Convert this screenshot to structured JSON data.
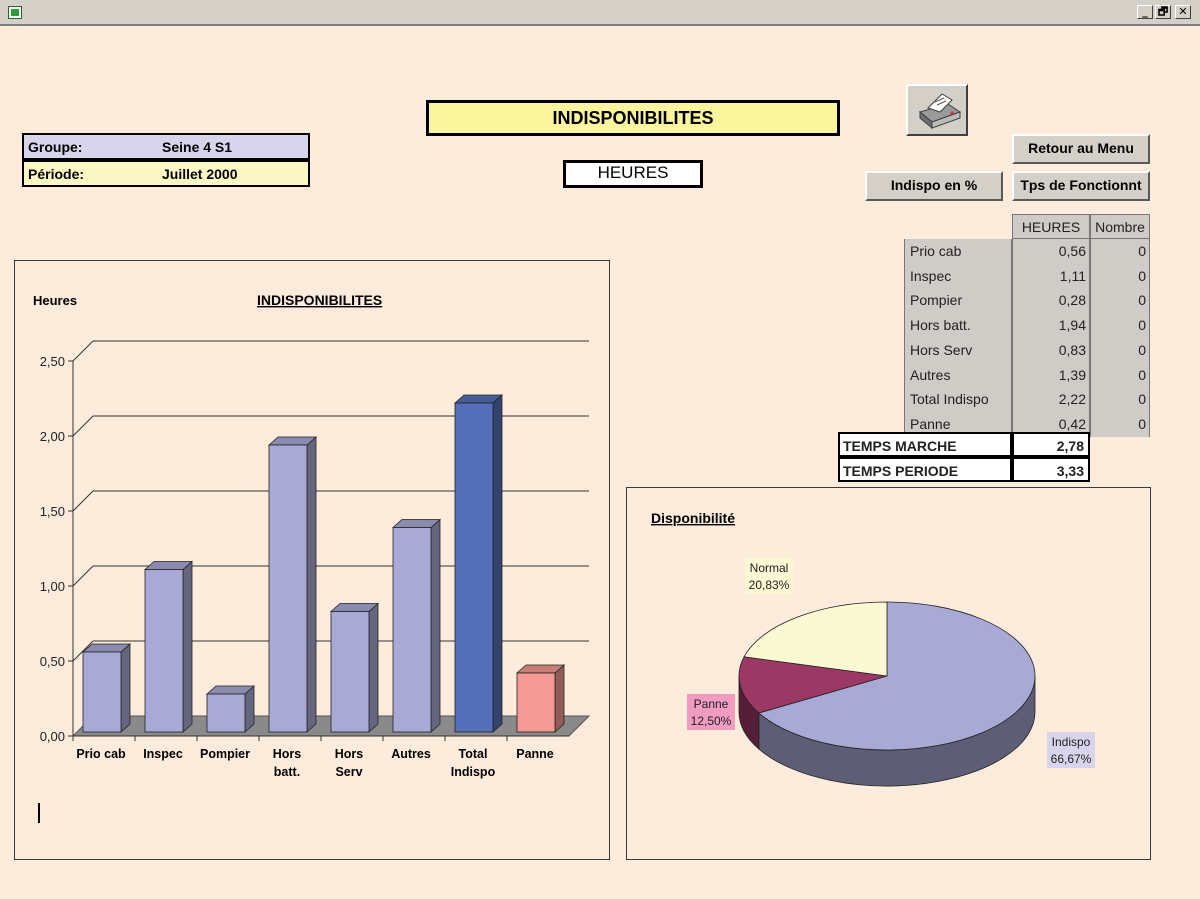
{
  "window": {
    "icon": "excel-icon",
    "controls": [
      "_",
      "🗗",
      "✕"
    ]
  },
  "info": {
    "groupe_label": "Groupe:",
    "groupe_value": "Seine 4 S1",
    "periode_label": "Période:",
    "periode_value": "Juillet 2000"
  },
  "header": {
    "title": "INDISPONIBILITES",
    "unit": "HEURES"
  },
  "buttons": {
    "print_icon": "printer-icon",
    "menu": "Retour au Menu",
    "percent": "Indispo en %",
    "fonctionnement": "Tps de Fonctionnt"
  },
  "table": {
    "col_heures": "HEURES",
    "col_nombre": "Nombre",
    "rows": [
      {
        "label": "Prio cab",
        "heures": "0,56",
        "nombre": "0"
      },
      {
        "label": "Inspec",
        "heures": "1,11",
        "nombre": "0"
      },
      {
        "label": "Pompier",
        "heures": "0,28",
        "nombre": "0"
      },
      {
        "label": "Hors batt.",
        "heures": "1,94",
        "nombre": "0"
      },
      {
        "label": "Hors Serv",
        "heures": "0,83",
        "nombre": "0"
      },
      {
        "label": "Autres",
        "heures": "1,39",
        "nombre": "0"
      },
      {
        "label": "Total Indispo",
        "heures": "2,22",
        "nombre": "0"
      },
      {
        "label": "Panne",
        "heures": "0,42",
        "nombre": "0"
      }
    ],
    "temps_marche_label": "TEMPS MARCHE",
    "temps_marche_value": "2,78",
    "temps_periode_label": "TEMPS PERIODE",
    "temps_periode_value": "3,33"
  },
  "chart_data": [
    {
      "type": "bar",
      "title": "INDISPONIBILITES",
      "ylabel": "Heures",
      "xlabel": "",
      "categories": [
        "Prio cab",
        "Inspec",
        "Pompier",
        "Hors batt.",
        "Hors Serv",
        "Autres",
        "Total Indispo",
        "Panne"
      ],
      "category_lines": [
        [
          "Prio cab"
        ],
        [
          "Inspec"
        ],
        [
          "Pompier"
        ],
        [
          "Hors",
          "batt."
        ],
        [
          "Hors",
          "Serv"
        ],
        [
          "Autres"
        ],
        [
          "Total",
          "Indispo"
        ],
        [
          "Panne"
        ]
      ],
      "values": [
        0.56,
        1.11,
        0.28,
        1.94,
        0.83,
        1.39,
        2.22,
        0.42
      ],
      "colors": [
        "#a9a9d6",
        "#a9a9d6",
        "#a9a9d6",
        "#a9a9d6",
        "#a9a9d6",
        "#a9a9d6",
        "#5570b8",
        "#f39a94"
      ],
      "ylim": [
        0,
        2.5
      ],
      "yticks": [
        "0,00",
        "0,50",
        "1,00",
        "1,50",
        "2,00",
        "2,50"
      ],
      "grid": true,
      "legend": "none"
    },
    {
      "type": "pie",
      "title": "Disponibilité",
      "slices": [
        {
          "label": "Indispo",
          "percent_text": "66,67%",
          "value": 66.67,
          "color": "#a9a9d6"
        },
        {
          "label": "Panne",
          "percent_text": "12,50%",
          "value": 12.5,
          "color": "#9b3865"
        },
        {
          "label": "Normal",
          "percent_text": "20,83%",
          "value": 20.83,
          "color": "#fbf8d4"
        }
      ]
    }
  ]
}
